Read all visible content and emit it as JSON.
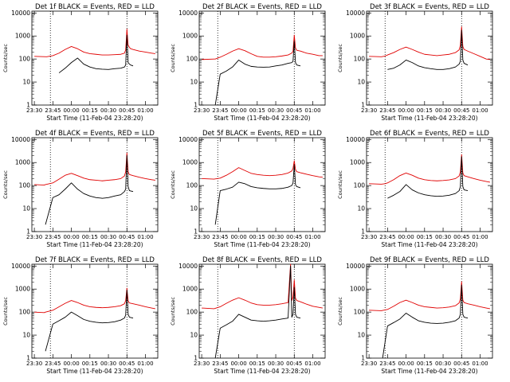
{
  "colors": {
    "events": "#000000",
    "lld": "#e00000",
    "axis": "#000000",
    "background": "#ffffff"
  },
  "shared": {
    "xlabel": "Start Time (11-Feb-04 23:28:20)",
    "ylabel": "Counts/sec",
    "x_tick_labels": [
      "23:30",
      "23:45",
      "00:00",
      "00:15",
      "00:30",
      "00:45",
      "01:00"
    ],
    "y_tick_labels": [
      "1",
      "10",
      "100",
      "1000",
      "10000"
    ]
  },
  "chart_data": [
    {
      "type": "line",
      "title": "Det 1f BLACK = Events, RED = LLD",
      "xlabel": "Start Time (11-Feb-04 23:28:20)",
      "ylabel": "Counts/sec",
      "yscale": "log",
      "ylim": [
        1,
        12000
      ],
      "xlim": [
        "23:28",
        "01:10"
      ],
      "x_ticks": [
        "23:30",
        "23:45",
        "00:00",
        "00:15",
        "00:30",
        "00:45",
        "01:00"
      ],
      "y_ticks": [
        1,
        10,
        100,
        1000,
        10000
      ],
      "vlines": [
        "23:43",
        "00:45"
      ],
      "x_times": [
        "23:30",
        "23:40",
        "23:45",
        "23:50",
        "23:55",
        "00:00",
        "00:05",
        "00:10",
        "00:15",
        "00:20",
        "00:25",
        "00:30",
        "00:35",
        "00:40",
        "00:43",
        "00:44",
        "00:45",
        "00:46",
        "00:47",
        "00:48",
        "00:50",
        "00:55",
        "01:00",
        "01:05",
        "01:08"
      ],
      "series": [
        {
          "name": "Events",
          "color": "#000000",
          "values": [
            null,
            null,
            null,
            25,
            40,
            70,
            110,
            60,
            45,
            38,
            36,
            35,
            38,
            40,
            45,
            55,
            1100,
            70,
            60,
            55,
            50,
            null,
            null,
            null,
            null
          ]
        },
        {
          "name": "LLD",
          "color": "#e00000",
          "values": [
            130,
            125,
            140,
            180,
            260,
            350,
            280,
            200,
            170,
            160,
            150,
            150,
            155,
            160,
            180,
            250,
            2000,
            400,
            320,
            280,
            260,
            220,
            200,
            180,
            170
          ]
        }
      ]
    },
    {
      "type": "line",
      "title": "Det 2f BLACK = Events, RED = LLD",
      "xlabel": "Start Time (11-Feb-04 23:28:20)",
      "ylabel": "Counts/sec",
      "yscale": "log",
      "ylim": [
        1,
        12000
      ],
      "xlim": [
        "23:28",
        "01:10"
      ],
      "x_ticks": [
        "23:30",
        "23:45",
        "00:00",
        "00:15",
        "00:30",
        "00:45",
        "01:00"
      ],
      "y_ticks": [
        1,
        10,
        100,
        1000,
        10000
      ],
      "vlines": [
        "23:43",
        "00:45"
      ],
      "x_times": [
        "23:30",
        "23:40",
        "23:41",
        "23:45",
        "23:50",
        "23:55",
        "00:00",
        "00:05",
        "00:10",
        "00:15",
        "00:20",
        "00:25",
        "00:30",
        "00:35",
        "00:40",
        "00:43",
        "00:44",
        "00:45",
        "00:46",
        "00:47",
        "00:50",
        "00:55",
        "01:00",
        "01:05",
        "01:08"
      ],
      "series": [
        {
          "name": "Events",
          "color": "#000000",
          "values": [
            null,
            null,
            1,
            22,
            30,
            45,
            90,
            60,
            48,
            45,
            44,
            45,
            50,
            55,
            65,
            70,
            80,
            600,
            70,
            55,
            50,
            null,
            null,
            null,
            null
          ]
        },
        {
          "name": "LLD",
          "color": "#e00000",
          "values": [
            95,
            100,
            100,
            120,
            160,
            220,
            280,
            230,
            170,
            130,
            120,
            120,
            125,
            135,
            150,
            180,
            220,
            1100,
            300,
            240,
            220,
            180,
            160,
            140,
            140
          ]
        }
      ]
    },
    {
      "type": "line",
      "title": "Det 3f BLACK = Events, RED = LLD",
      "xlabel": "Start Time (11-Feb-04 23:28:20)",
      "ylabel": "Counts/sec",
      "yscale": "log",
      "ylim": [
        1,
        12000
      ],
      "xlim": [
        "23:28",
        "01:10"
      ],
      "x_ticks": [
        "23:30",
        "23:45",
        "00:00",
        "00:15",
        "00:30",
        "00:45",
        "01:00"
      ],
      "y_ticks": [
        1,
        10,
        100,
        1000,
        10000
      ],
      "vlines": [
        "23:43",
        "00:45"
      ],
      "x_times": [
        "23:30",
        "23:40",
        "23:43",
        "23:45",
        "23:50",
        "23:55",
        "00:00",
        "00:05",
        "00:10",
        "00:15",
        "00:20",
        "00:25",
        "00:30",
        "00:35",
        "00:40",
        "00:43",
        "00:44",
        "00:45",
        "00:46",
        "00:47",
        "00:50",
        "00:55",
        "01:00",
        "01:05",
        "01:08"
      ],
      "series": [
        {
          "name": "Events",
          "color": "#000000",
          "values": [
            null,
            null,
            null,
            35,
            40,
            55,
            90,
            70,
            50,
            42,
            38,
            35,
            35,
            38,
            45,
            60,
            80,
            1800,
            90,
            65,
            55,
            null,
            null,
            null,
            null
          ]
        },
        {
          "name": "LLD",
          "color": "#e00000",
          "values": [
            130,
            125,
            135,
            150,
            190,
            260,
            330,
            260,
            200,
            160,
            150,
            140,
            150,
            160,
            190,
            250,
            400,
            2500,
            350,
            260,
            220,
            170,
            130,
            100,
            95
          ]
        }
      ]
    },
    {
      "type": "line",
      "title": "Det 4f BLACK = Events, RED = LLD",
      "xlabel": "Start Time (11-Feb-04 23:28:20)",
      "ylabel": "Counts/sec",
      "yscale": "log",
      "ylim": [
        1,
        12000
      ],
      "xlim": [
        "23:28",
        "01:10"
      ],
      "x_ticks": [
        "23:30",
        "23:45",
        "00:00",
        "00:15",
        "00:30",
        "00:45",
        "01:00"
      ],
      "y_ticks": [
        1,
        10,
        100,
        1000,
        10000
      ],
      "vlines": [
        "23:43",
        "00:45"
      ],
      "x_times": [
        "23:30",
        "23:38",
        "23:39",
        "23:45",
        "23:50",
        "23:55",
        "00:00",
        "00:05",
        "00:10",
        "00:15",
        "00:20",
        "00:25",
        "00:30",
        "00:35",
        "00:40",
        "00:43",
        "00:44",
        "00:45",
        "00:46",
        "00:47",
        "00:50",
        "00:55",
        "01:00",
        "01:05",
        "01:08"
      ],
      "series": [
        {
          "name": "Events",
          "color": "#000000",
          "values": [
            null,
            null,
            2,
            30,
            40,
            70,
            130,
            70,
            45,
            35,
            30,
            28,
            30,
            35,
            40,
            55,
            70,
            2000,
            90,
            60,
            55,
            null,
            null,
            null,
            null
          ]
        },
        {
          "name": "LLD",
          "color": "#e00000",
          "values": [
            110,
            105,
            110,
            130,
            190,
            280,
            340,
            270,
            210,
            180,
            170,
            160,
            170,
            180,
            200,
            260,
            400,
            2600,
            380,
            300,
            270,
            230,
            200,
            180,
            170
          ]
        }
      ]
    },
    {
      "type": "line",
      "title": "Det 5f BLACK = Events, RED = LLD",
      "xlabel": "Start Time (11-Feb-04 23:28:20)",
      "ylabel": "Counts/sec",
      "yscale": "log",
      "ylim": [
        1,
        12000
      ],
      "xlim": [
        "23:28",
        "01:10"
      ],
      "x_ticks": [
        "23:30",
        "23:45",
        "00:00",
        "00:15",
        "00:30",
        "00:45",
        "01:00"
      ],
      "y_ticks": [
        1,
        10,
        100,
        1000,
        10000
      ],
      "vlines": [
        "23:43",
        "00:45"
      ],
      "x_times": [
        "23:30",
        "23:40",
        "23:41",
        "23:45",
        "23:50",
        "23:55",
        "00:00",
        "00:05",
        "00:10",
        "00:15",
        "00:20",
        "00:25",
        "00:30",
        "00:35",
        "00:40",
        "00:43",
        "00:44",
        "00:45",
        "00:46",
        "00:47",
        "00:50",
        "00:55",
        "01:00",
        "01:05",
        "01:08"
      ],
      "series": [
        {
          "name": "Events",
          "color": "#000000",
          "values": [
            null,
            null,
            2,
            60,
            70,
            85,
            140,
            120,
            90,
            80,
            75,
            72,
            72,
            75,
            85,
            100,
            130,
            800,
            110,
            90,
            80,
            null,
            null,
            null,
            null
          ]
        },
        {
          "name": "LLD",
          "color": "#e00000",
          "values": [
            200,
            190,
            195,
            210,
            280,
            400,
            600,
            450,
            340,
            300,
            280,
            270,
            280,
            300,
            350,
            430,
            550,
            1200,
            500,
            400,
            360,
            310,
            270,
            240,
            230
          ]
        }
      ]
    },
    {
      "type": "line",
      "title": "Det 6f BLACK = Events, RED = LLD",
      "xlabel": "Start Time (11-Feb-04 23:28:20)",
      "ylabel": "Counts/sec",
      "yscale": "log",
      "ylim": [
        1,
        12000
      ],
      "xlim": [
        "23:28",
        "01:10"
      ],
      "x_ticks": [
        "23:30",
        "23:45",
        "00:00",
        "00:15",
        "00:30",
        "00:45",
        "01:00"
      ],
      "y_ticks": [
        1,
        10,
        100,
        1000,
        10000
      ],
      "vlines": [
        "23:43",
        "00:45"
      ],
      "x_times": [
        "23:30",
        "23:40",
        "23:43",
        "23:45",
        "23:50",
        "23:55",
        "00:00",
        "00:05",
        "00:10",
        "00:15",
        "00:20",
        "00:25",
        "00:30",
        "00:35",
        "00:40",
        "00:43",
        "00:44",
        "00:45",
        "00:46",
        "00:47",
        "00:50",
        "00:55",
        "01:00",
        "01:05",
        "01:08"
      ],
      "series": [
        {
          "name": "Events",
          "color": "#000000",
          "values": [
            null,
            null,
            null,
            28,
            38,
            55,
            110,
            65,
            48,
            40,
            36,
            34,
            35,
            38,
            45,
            60,
            90,
            1800,
            90,
            65,
            60,
            null,
            null,
            null,
            null
          ]
        },
        {
          "name": "LLD",
          "color": "#e00000",
          "values": [
            120,
            115,
            120,
            130,
            180,
            270,
            350,
            280,
            210,
            180,
            165,
            160,
            165,
            175,
            200,
            260,
            400,
            2200,
            350,
            270,
            240,
            200,
            170,
            150,
            140
          ]
        }
      ]
    },
    {
      "type": "line",
      "title": "Det 7f BLACK = Events, RED = LLD",
      "xlabel": "Start Time (11-Feb-04 23:28:20)",
      "ylabel": "Counts/sec",
      "yscale": "log",
      "ylim": [
        1,
        12000
      ],
      "xlim": [
        "23:28",
        "01:10"
      ],
      "x_ticks": [
        "23:30",
        "23:45",
        "00:00",
        "00:15",
        "00:30",
        "00:45",
        "01:00"
      ],
      "y_ticks": [
        1,
        10,
        100,
        1000,
        10000
      ],
      "vlines": [
        "23:43",
        "00:45"
      ],
      "x_times": [
        "23:30",
        "23:38",
        "23:39",
        "23:45",
        "23:50",
        "23:55",
        "00:00",
        "00:05",
        "00:10",
        "00:15",
        "00:20",
        "00:25",
        "00:30",
        "00:35",
        "00:40",
        "00:43",
        "00:44",
        "00:45",
        "00:46",
        "00:47",
        "00:50",
        "00:55",
        "01:00",
        "01:05",
        "01:08"
      ],
      "series": [
        {
          "name": "Events",
          "color": "#000000",
          "values": [
            null,
            null,
            2,
            30,
            42,
            60,
            100,
            70,
            48,
            40,
            36,
            34,
            35,
            38,
            45,
            55,
            75,
            900,
            80,
            60,
            55,
            null,
            null,
            null,
            null
          ]
        },
        {
          "name": "LLD",
          "color": "#e00000",
          "values": [
            100,
            95,
            100,
            120,
            170,
            240,
            320,
            260,
            200,
            170,
            160,
            155,
            160,
            170,
            190,
            230,
            320,
            1100,
            300,
            250,
            230,
            200,
            170,
            150,
            140
          ]
        }
      ]
    },
    {
      "type": "line",
      "title": "Det 8f BLACK = Events, RED = LLD",
      "xlabel": "Start Time (11-Feb-04 23:28:20)",
      "ylabel": "Counts/sec",
      "yscale": "log",
      "ylim": [
        1,
        12000
      ],
      "xlim": [
        "23:28",
        "01:10"
      ],
      "x_ticks": [
        "23:30",
        "23:45",
        "00:00",
        "00:15",
        "00:30",
        "00:45",
        "01:00"
      ],
      "y_ticks": [
        1,
        10,
        100,
        1000,
        10000
      ],
      "vlines": [
        "23:43",
        "00:45"
      ],
      "x_times": [
        "23:30",
        "23:40",
        "23:41",
        "23:45",
        "23:50",
        "23:55",
        "00:00",
        "00:05",
        "00:10",
        "00:15",
        "00:20",
        "00:25",
        "00:30",
        "00:35",
        "00:40",
        "00:42",
        "00:43",
        "00:44",
        "00:45",
        "00:46",
        "00:47",
        "00:50",
        "00:55",
        "01:00",
        "01:08"
      ],
      "series": [
        {
          "name": "Events",
          "color": "#000000",
          "values": [
            null,
            null,
            1,
            20,
            28,
            40,
            80,
            60,
            45,
            42,
            40,
            42,
            45,
            50,
            55,
            10000,
            60,
            80,
            1200,
            80,
            60,
            55,
            null,
            null,
            null
          ]
        },
        {
          "name": "LLD",
          "color": "#e00000",
          "values": [
            150,
            140,
            145,
            170,
            240,
            330,
            420,
            330,
            250,
            210,
            200,
            200,
            210,
            230,
            260,
            12000,
            320,
            450,
            2500,
            400,
            320,
            280,
            220,
            180,
            150
          ]
        }
      ]
    },
    {
      "type": "line",
      "title": "Det 9f BLACK = Events, RED = LLD",
      "xlabel": "Start Time (11-Feb-04 23:28:20)",
      "ylabel": "Counts/sec",
      "yscale": "log",
      "ylim": [
        1,
        12000
      ],
      "xlim": [
        "23:28",
        "01:10"
      ],
      "x_ticks": [
        "23:30",
        "23:45",
        "00:00",
        "00:15",
        "00:30",
        "00:45",
        "01:00"
      ],
      "y_ticks": [
        1,
        10,
        100,
        1000,
        10000
      ],
      "vlines": [
        "23:43",
        "00:45"
      ],
      "x_times": [
        "23:30",
        "23:40",
        "23:41",
        "23:45",
        "23:50",
        "23:55",
        "00:00",
        "00:05",
        "00:10",
        "00:15",
        "00:20",
        "00:25",
        "00:30",
        "00:35",
        "00:40",
        "00:43",
        "00:44",
        "00:45",
        "00:46",
        "00:47",
        "00:50",
        "00:55",
        "01:00",
        "01:05",
        "01:08"
      ],
      "series": [
        {
          "name": "Events",
          "color": "#000000",
          "values": [
            null,
            null,
            1,
            25,
            35,
            50,
            90,
            60,
            42,
            36,
            33,
            32,
            33,
            36,
            42,
            55,
            80,
            1500,
            80,
            60,
            55,
            null,
            null,
            null,
            null
          ]
        },
        {
          "name": "LLD",
          "color": "#e00000",
          "values": [
            120,
            115,
            118,
            130,
            180,
            260,
            330,
            260,
            200,
            170,
            160,
            150,
            155,
            165,
            190,
            250,
            380,
            2100,
            330,
            260,
            230,
            200,
            170,
            150,
            140
          ]
        }
      ]
    }
  ]
}
